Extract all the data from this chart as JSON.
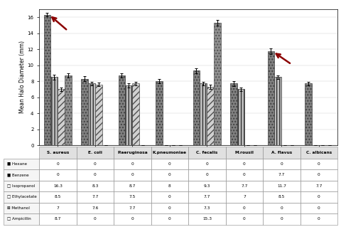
{
  "bacteria": [
    "S. aureus",
    "E. coli",
    "P.aeruginosa",
    "K.pneumoniae",
    "C. fecalis",
    "M.rousil",
    "A. flavus",
    "C. albicans"
  ],
  "solvents": [
    "Isopropanol",
    "Ethylacetate",
    "Methanol",
    "Ampicillin"
  ],
  "values": {
    "Isopropanol": [
      16.3,
      8.3,
      8.7,
      8.0,
      9.3,
      7.7,
      11.7,
      7.7
    ],
    "Ethylacetate": [
      8.5,
      7.7,
      7.5,
      0.0,
      7.7,
      7.0,
      8.5,
      0.0
    ],
    "Methanol": [
      7.0,
      7.6,
      7.7,
      0.0,
      7.3,
      0.0,
      0.0,
      0.0
    ],
    "Ampicillin": [
      8.7,
      0.0,
      0.0,
      0.0,
      15.3,
      0.0,
      0.0,
      0.0
    ]
  },
  "errors": {
    "Isopropanol": [
      0.25,
      0.3,
      0.25,
      0.25,
      0.35,
      0.3,
      0.35,
      0.25
    ],
    "Ethylacetate": [
      0.3,
      0.25,
      0.25,
      0.0,
      0.25,
      0.25,
      0.25,
      0.0
    ],
    "Methanol": [
      0.25,
      0.25,
      0.25,
      0.0,
      0.25,
      0.0,
      0.0,
      0.0
    ],
    "Ampicillin": [
      0.25,
      0.0,
      0.0,
      0.0,
      0.35,
      0.0,
      0.0,
      0.0
    ]
  },
  "table_data": {
    "Hexane": [
      "0",
      "0",
      "0",
      "0",
      "0",
      "0",
      "0",
      "0"
    ],
    "Benzene": [
      "0",
      "0",
      "0",
      "0",
      "0",
      "0",
      "7.7",
      "0"
    ],
    "Isopropanol": [
      "16.3",
      "8.3",
      "8.7",
      "8",
      "9.3",
      "7.7",
      "11.7",
      "7.7"
    ],
    "Ethylacetate": [
      "8.5",
      "7.7",
      "7.5",
      "0",
      "7.7",
      "7",
      "8.5",
      "0"
    ],
    "Methanol": [
      "7",
      "7.6",
      "7.7",
      "0",
      "7.3",
      "0",
      "0",
      "0"
    ],
    "Ampicillin": [
      "8.7",
      "0",
      "0",
      "0",
      "15.3",
      "0",
      "0",
      "0"
    ]
  },
  "table_row_labels": [
    "Hexane",
    "Benzene",
    "Isopropanol",
    "Ethylacetate",
    "Methanol",
    "Ampicillin"
  ],
  "ylabel": "Mean Halo Diameter (mm)",
  "ylim": [
    0,
    17
  ],
  "yticks": [
    0,
    2,
    4,
    6,
    8,
    10,
    12,
    14,
    16
  ]
}
